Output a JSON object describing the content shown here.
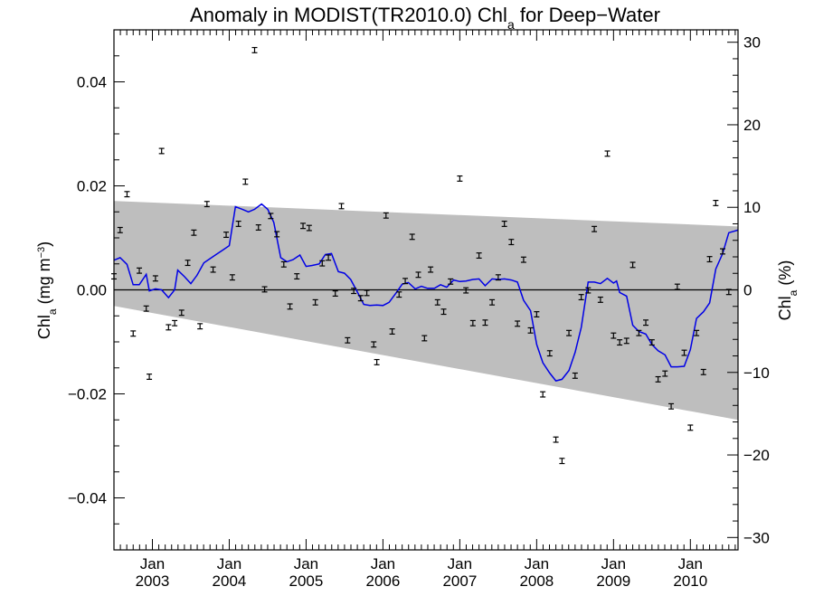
{
  "chart_data": {
    "type": "scatter",
    "title": "Anomaly in MODIST(TR2010.0) Chl",
    "title_subscript": "a",
    "title_suffix": " for Deep−Water",
    "ylabel_left": {
      "main": "Chl",
      "sub": "a",
      "units": " (mg m",
      "sup": "−3",
      "close": ")"
    },
    "ylabel_right": {
      "main": "Chl",
      "sub": "a",
      "units": " (%)"
    },
    "xlim": [
      2002.5,
      2010.62
    ],
    "ylim_left": [
      -0.05,
      0.05
    ],
    "ylim_right": [
      -31.5,
      31.5
    ],
    "x_ticks": [
      {
        "x": 2003.0,
        "month": "Jan",
        "year": "2003"
      },
      {
        "x": 2004.0,
        "month": "Jan",
        "year": "2004"
      },
      {
        "x": 2005.0,
        "month": "Jan",
        "year": "2005"
      },
      {
        "x": 2006.0,
        "month": "Jan",
        "year": "2006"
      },
      {
        "x": 2007.0,
        "month": "Jan",
        "year": "2007"
      },
      {
        "x": 2008.0,
        "month": "Jan",
        "year": "2008"
      },
      {
        "x": 2009.0,
        "month": "Jan",
        "year": "2009"
      },
      {
        "x": 2010.0,
        "month": "Jan",
        "year": "2010"
      }
    ],
    "y_ticks_left": [
      {
        "v": 0.04,
        "label": "0.04"
      },
      {
        "v": 0.02,
        "label": "0.02"
      },
      {
        "v": 0.0,
        "label": "0.00"
      },
      {
        "v": -0.02,
        "label": "−0.02"
      },
      {
        "v": -0.04,
        "label": "−0.04"
      }
    ],
    "y_ticks_right": [
      {
        "v": 30,
        "label": "30"
      },
      {
        "v": 20,
        "label": "20"
      },
      {
        "v": 10,
        "label": "10"
      },
      {
        "v": 0,
        "label": "0"
      },
      {
        "v": -10,
        "label": "−10"
      },
      {
        "v": -20,
        "label": "−20"
      },
      {
        "v": -30,
        "label": "−30"
      }
    ],
    "band": {
      "upper": [
        [
          2002.5,
          0.0171
        ],
        [
          2010.62,
          0.0122
        ]
      ],
      "lower": [
        [
          2002.5,
          -0.0031
        ],
        [
          2010.62,
          -0.025
        ]
      ],
      "color": "#bebebe"
    },
    "zero_line": 0.0,
    "points": [
      [
        2002.5,
        0.0026
      ],
      [
        2002.58,
        0.0115
      ],
      [
        2002.67,
        0.0184
      ],
      [
        2002.75,
        -0.0084
      ],
      [
        2002.83,
        0.0037
      ],
      [
        2002.92,
        -0.0036
      ],
      [
        2002.96,
        -0.0167
      ],
      [
        2003.04,
        0.0022
      ],
      [
        2003.12,
        0.0267
      ],
      [
        2003.21,
        -0.0072
      ],
      [
        2003.29,
        -0.0064
      ],
      [
        2003.38,
        -0.0044
      ],
      [
        2003.46,
        0.0052
      ],
      [
        2003.54,
        0.011
      ],
      [
        2003.62,
        -0.007
      ],
      [
        2003.71,
        0.0165
      ],
      [
        2003.79,
        0.0039
      ],
      [
        2003.96,
        0.0106
      ],
      [
        2004.04,
        0.0024
      ],
      [
        2004.12,
        0.0127
      ],
      [
        2004.21,
        0.0208
      ],
      [
        2004.33,
        0.0461
      ],
      [
        2004.38,
        0.012
      ],
      [
        2004.46,
        0.0001
      ],
      [
        2004.54,
        0.0142
      ],
      [
        2004.62,
        0.0107
      ],
      [
        2004.71,
        0.0049
      ],
      [
        2004.79,
        -0.0032
      ],
      [
        2004.88,
        0.0026
      ],
      [
        2004.96,
        0.0123
      ],
      [
        2005.04,
        0.0119
      ],
      [
        2005.12,
        -0.0024
      ],
      [
        2005.21,
        0.0051
      ],
      [
        2005.29,
        0.0062
      ],
      [
        2005.38,
        -0.0007
      ],
      [
        2005.46,
        0.0161
      ],
      [
        2005.54,
        -0.0097
      ],
      [
        2005.62,
        -0.0002
      ],
      [
        2005.71,
        -0.0016
      ],
      [
        2005.79,
        -0.0006
      ],
      [
        2005.88,
        -0.0105
      ],
      [
        2005.92,
        -0.0139
      ],
      [
        2006.04,
        0.0143
      ],
      [
        2006.12,
        -0.008
      ],
      [
        2006.21,
        -0.0009
      ],
      [
        2006.29,
        0.0017
      ],
      [
        2006.38,
        0.0102
      ],
      [
        2006.46,
        0.0029
      ],
      [
        2006.54,
        -0.0093
      ],
      [
        2006.62,
        0.0039
      ],
      [
        2006.71,
        -0.0024
      ],
      [
        2006.79,
        -0.0042
      ],
      [
        2006.88,
        0.0016
      ],
      [
        2007.0,
        0.0214
      ],
      [
        2007.08,
        -0.0001
      ],
      [
        2007.17,
        -0.0064
      ],
      [
        2007.25,
        0.0066
      ],
      [
        2007.33,
        -0.0063
      ],
      [
        2007.42,
        -0.0024
      ],
      [
        2007.5,
        0.0024
      ],
      [
        2007.58,
        0.0127
      ],
      [
        2007.67,
        0.0092
      ],
      [
        2007.75,
        -0.0065
      ],
      [
        2007.83,
        0.0058
      ],
      [
        2007.92,
        -0.0078
      ],
      [
        2008.0,
        -0.0047
      ],
      [
        2008.08,
        -0.0201
      ],
      [
        2008.17,
        -0.0122
      ],
      [
        2008.25,
        -0.0288
      ],
      [
        2008.33,
        -0.0329
      ],
      [
        2008.42,
        -0.0083
      ],
      [
        2008.5,
        -0.0165
      ],
      [
        2008.58,
        -0.0014
      ],
      [
        2008.67,
        -0.0001
      ],
      [
        2008.75,
        0.0117
      ],
      [
        2008.83,
        -0.0019
      ],
      [
        2008.92,
        0.0262
      ],
      [
        2009.0,
        -0.0088
      ],
      [
        2009.08,
        -0.0101
      ],
      [
        2009.17,
        -0.0098
      ],
      [
        2009.25,
        0.0048
      ],
      [
        2009.33,
        -0.0083
      ],
      [
        2009.42,
        -0.0063
      ],
      [
        2009.5,
        -0.0101
      ],
      [
        2009.58,
        -0.0172
      ],
      [
        2009.67,
        -0.0161
      ],
      [
        2009.75,
        -0.0224
      ],
      [
        2009.83,
        0.0006
      ],
      [
        2009.92,
        -0.0121
      ],
      [
        2010.0,
        -0.0265
      ],
      [
        2010.08,
        -0.0083
      ],
      [
        2010.17,
        -0.0158
      ],
      [
        2010.25,
        0.0059
      ],
      [
        2010.33,
        0.0167
      ],
      [
        2010.42,
        0.0074
      ],
      [
        2010.5,
        -0.0004
      ]
    ],
    "errbar_half": 0.0005,
    "smoothed": [
      [
        2002.5,
        0.0057
      ],
      [
        2002.58,
        0.0062
      ],
      [
        2002.67,
        0.0049
      ],
      [
        2002.75,
        0.001
      ],
      [
        2002.83,
        0.001
      ],
      [
        2002.92,
        0.003
      ],
      [
        2002.96,
        -0.0002
      ],
      [
        2003.04,
        0.0002
      ],
      [
        2003.12,
        0.0
      ],
      [
        2003.21,
        -0.0015
      ],
      [
        2003.29,
        0.0
      ],
      [
        2003.33,
        0.0038
      ],
      [
        2003.42,
        0.0025
      ],
      [
        2003.5,
        0.0012
      ],
      [
        2003.58,
        0.0028
      ],
      [
        2003.67,
        0.0052
      ],
      [
        2003.75,
        0.006
      ],
      [
        2003.83,
        0.0068
      ],
      [
        2003.92,
        0.0077
      ],
      [
        2004.0,
        0.0085
      ],
      [
        2004.08,
        0.016
      ],
      [
        2004.17,
        0.0155
      ],
      [
        2004.25,
        0.015
      ],
      [
        2004.33,
        0.0155
      ],
      [
        2004.42,
        0.0165
      ],
      [
        2004.5,
        0.0155
      ],
      [
        2004.58,
        0.013
      ],
      [
        2004.67,
        0.0062
      ],
      [
        2004.75,
        0.0054
      ],
      [
        2004.83,
        0.0058
      ],
      [
        2004.92,
        0.0067
      ],
      [
        2005.0,
        0.0045
      ],
      [
        2005.08,
        0.0047
      ],
      [
        2005.17,
        0.005
      ],
      [
        2005.25,
        0.0068
      ],
      [
        2005.33,
        0.007
      ],
      [
        2005.42,
        0.0035
      ],
      [
        2005.5,
        0.0032
      ],
      [
        2005.58,
        0.002
      ],
      [
        2005.67,
        -0.0005
      ],
      [
        2005.75,
        -0.0028
      ],
      [
        2005.83,
        -0.003
      ],
      [
        2005.92,
        -0.0029
      ],
      [
        2006.0,
        -0.003
      ],
      [
        2006.08,
        -0.0024
      ],
      [
        2006.17,
        -0.0006
      ],
      [
        2006.25,
        0.0011
      ],
      [
        2006.33,
        0.0014
      ],
      [
        2006.42,
        0.0002
      ],
      [
        2006.5,
        0.0007
      ],
      [
        2006.58,
        0.0003
      ],
      [
        2006.67,
        0.0003
      ],
      [
        2006.75,
        0.001
      ],
      [
        2006.83,
        0.0005
      ],
      [
        2006.92,
        0.0019
      ],
      [
        2007.0,
        0.0016
      ],
      [
        2007.08,
        0.0017
      ],
      [
        2007.17,
        0.002
      ],
      [
        2007.25,
        0.0021
      ],
      [
        2007.33,
        0.0008
      ],
      [
        2007.42,
        0.0021
      ],
      [
        2007.5,
        0.002
      ],
      [
        2007.58,
        0.0021
      ],
      [
        2007.67,
        0.0019
      ],
      [
        2007.75,
        0.0015
      ],
      [
        2007.83,
        -0.002
      ],
      [
        2007.92,
        -0.004
      ],
      [
        2008.0,
        -0.0105
      ],
      [
        2008.08,
        -0.014
      ],
      [
        2008.17,
        -0.016
      ],
      [
        2008.25,
        -0.0175
      ],
      [
        2008.33,
        -0.0172
      ],
      [
        2008.42,
        -0.0155
      ],
      [
        2008.5,
        -0.012
      ],
      [
        2008.58,
        -0.0072
      ],
      [
        2008.67,
        0.0015
      ],
      [
        2008.75,
        0.0015
      ],
      [
        2008.83,
        0.0012
      ],
      [
        2008.92,
        0.0022
      ],
      [
        2009.0,
        0.0013
      ],
      [
        2009.04,
        0.0017
      ],
      [
        2009.08,
        -0.0005
      ],
      [
        2009.17,
        -0.0012
      ],
      [
        2009.25,
        -0.0068
      ],
      [
        2009.33,
        -0.008
      ],
      [
        2009.42,
        -0.0085
      ],
      [
        2009.5,
        -0.0105
      ],
      [
        2009.58,
        -0.0117
      ],
      [
        2009.67,
        -0.0125
      ],
      [
        2009.75,
        -0.0148
      ],
      [
        2009.83,
        -0.0148
      ],
      [
        2009.92,
        -0.0147
      ],
      [
        2010.0,
        -0.0115
      ],
      [
        2010.08,
        -0.0055
      ],
      [
        2010.17,
        -0.0042
      ],
      [
        2010.25,
        -0.0025
      ],
      [
        2010.33,
        0.004
      ],
      [
        2010.42,
        0.007
      ],
      [
        2010.5,
        0.011
      ],
      [
        2010.62,
        0.0115
      ]
    ],
    "smoothed_color": "#0000e6",
    "grid": false,
    "legend": "none"
  }
}
